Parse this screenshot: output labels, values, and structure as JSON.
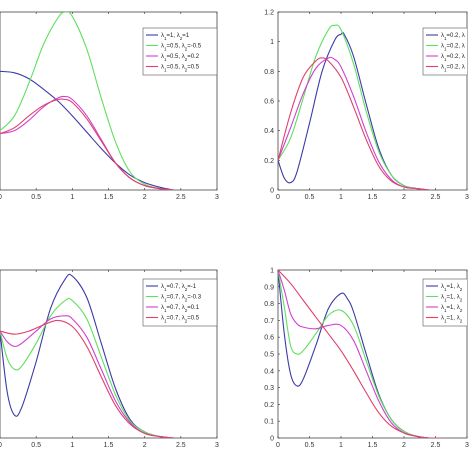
{
  "chart_data": [
    {
      "type": "line",
      "title": "",
      "xlabel": "",
      "ylabel": "",
      "xlim": [
        0,
        3
      ],
      "ylim": [
        0,
        1.2
      ],
      "grid": false,
      "legend_position": "top-right",
      "x_ticks": [
        "0",
        "0.5",
        "1",
        "1.5",
        "2",
        "2.5",
        "3"
      ],
      "y_ticks": [],
      "series": [
        {
          "name": "λ1=1, λ2=1",
          "color": "#3b3ba8",
          "x": [
            0,
            0.2,
            0.4,
            0.6,
            0.8,
            1.0,
            1.2,
            1.4,
            1.6,
            1.8,
            2.0,
            2.2,
            2.4
          ],
          "y": [
            0.8,
            0.79,
            0.75,
            0.68,
            0.6,
            0.5,
            0.39,
            0.28,
            0.18,
            0.1,
            0.05,
            0.02,
            0.0
          ]
        },
        {
          "name": "λ1=0.5, λ2=-0.5",
          "color": "#5fe05f",
          "x": [
            0,
            0.2,
            0.4,
            0.6,
            0.8,
            0.9,
            1.0,
            1.2,
            1.4,
            1.6,
            1.8,
            2.0,
            2.2,
            2.4
          ],
          "y": [
            0.4,
            0.5,
            0.72,
            0.98,
            1.16,
            1.2,
            1.17,
            0.95,
            0.62,
            0.32,
            0.12,
            0.04,
            0.01,
            0.0
          ]
        },
        {
          "name": "λ1=0.5, λ2=0.2",
          "color": "#d040d0",
          "x": [
            0,
            0.2,
            0.4,
            0.6,
            0.8,
            0.9,
            1.0,
            1.2,
            1.4,
            1.6,
            1.8,
            2.0,
            2.2,
            2.4
          ],
          "y": [
            0.38,
            0.4,
            0.47,
            0.56,
            0.62,
            0.63,
            0.61,
            0.5,
            0.34,
            0.18,
            0.08,
            0.03,
            0.01,
            0.0
          ]
        },
        {
          "name": "λ1=0.5, λ2=0.5",
          "color": "#e0406a",
          "x": [
            0,
            0.2,
            0.4,
            0.6,
            0.8,
            0.9,
            1.0,
            1.2,
            1.4,
            1.6,
            1.8,
            2.0,
            2.2,
            2.4
          ],
          "y": [
            0.38,
            0.42,
            0.5,
            0.57,
            0.61,
            0.61,
            0.59,
            0.48,
            0.33,
            0.18,
            0.08,
            0.03,
            0.01,
            0.0
          ]
        }
      ]
    },
    {
      "type": "line",
      "title": "",
      "xlabel": "",
      "ylabel": "",
      "xlim": [
        0,
        3
      ],
      "ylim": [
        0,
        1.2
      ],
      "grid": false,
      "legend_position": "top-right",
      "x_ticks": [
        "0",
        "0.5",
        "1",
        "1.5",
        "2",
        "2.5",
        "3"
      ],
      "y_ticks": [
        "0",
        "0.2",
        "0.4",
        "0.6",
        "0.8",
        "1",
        "1.2"
      ],
      "series": [
        {
          "name": "λ1=0.2, λ",
          "color": "#3b3ba8",
          "x": [
            0,
            0.1,
            0.2,
            0.3,
            0.5,
            0.7,
            0.9,
            1.0,
            1.05,
            1.2,
            1.4,
            1.6,
            1.8,
            2.0,
            2.2,
            2.4
          ],
          "y": [
            0.2,
            0.08,
            0.05,
            0.12,
            0.45,
            0.8,
            1.01,
            1.05,
            1.05,
            0.9,
            0.58,
            0.28,
            0.1,
            0.03,
            0.01,
            0.0
          ]
        },
        {
          "name": "λ1=0.2, λ",
          "color": "#5fe05f",
          "x": [
            0,
            0.2,
            0.4,
            0.6,
            0.8,
            0.9,
            1.0,
            1.2,
            1.4,
            1.6,
            1.8,
            2.0,
            2.2,
            2.4
          ],
          "y": [
            0.2,
            0.35,
            0.62,
            0.9,
            1.08,
            1.11,
            1.08,
            0.85,
            0.53,
            0.26,
            0.1,
            0.03,
            0.01,
            0.0
          ]
        },
        {
          "name": "λ1=0.2, λ",
          "color": "#d040d0",
          "x": [
            0,
            0.2,
            0.4,
            0.6,
            0.8,
            0.9,
            1.0,
            1.2,
            1.4,
            1.6,
            1.8,
            2.0,
            2.2,
            2.4
          ],
          "y": [
            0.2,
            0.42,
            0.65,
            0.82,
            0.89,
            0.88,
            0.83,
            0.63,
            0.39,
            0.19,
            0.07,
            0.02,
            0.01,
            0.0
          ]
        },
        {
          "name": "λ1=0.2, λ",
          "color": "#e0406a",
          "x": [
            0,
            0.2,
            0.4,
            0.6,
            0.7,
            0.8,
            1.0,
            1.2,
            1.4,
            1.6,
            1.8,
            2.0,
            2.2,
            2.4
          ],
          "y": [
            0.2,
            0.52,
            0.76,
            0.87,
            0.89,
            0.87,
            0.76,
            0.56,
            0.34,
            0.16,
            0.06,
            0.02,
            0.01,
            0.0
          ]
        }
      ]
    },
    {
      "type": "line",
      "title": "",
      "xlabel": "",
      "ylabel": "",
      "xlim": [
        0,
        3
      ],
      "ylim": [
        0,
        1.1
      ],
      "grid": false,
      "legend_position": "top-right",
      "x_ticks": [
        "0",
        "0.5",
        "1",
        "1.5",
        "2",
        "2.5",
        "3"
      ],
      "y_ticks": [],
      "series": [
        {
          "name": "λ1=0.7, λ2=-1",
          "color": "#3b3ba8",
          "x": [
            0,
            0.1,
            0.2,
            0.3,
            0.5,
            0.7,
            0.9,
            1.0,
            1.2,
            1.4,
            1.6,
            1.8,
            2.0,
            2.2,
            2.4
          ],
          "y": [
            0.7,
            0.3,
            0.15,
            0.2,
            0.5,
            0.85,
            1.04,
            1.06,
            0.92,
            0.62,
            0.32,
            0.12,
            0.04,
            0.01,
            0.0
          ]
        },
        {
          "name": "λ1=0.7, λ2=-0.3",
          "color": "#5fe05f",
          "x": [
            0,
            0.1,
            0.2,
            0.3,
            0.5,
            0.7,
            0.9,
            1.0,
            1.2,
            1.4,
            1.6,
            1.8,
            2.0,
            2.2,
            2.4
          ],
          "y": [
            0.7,
            0.52,
            0.45,
            0.47,
            0.62,
            0.8,
            0.9,
            0.9,
            0.78,
            0.53,
            0.28,
            0.11,
            0.04,
            0.01,
            0.0
          ]
        },
        {
          "name": "λ1=0.7, λ2=0.1",
          "color": "#d040d0",
          "x": [
            0,
            0.1,
            0.2,
            0.3,
            0.5,
            0.7,
            0.9,
            1.0,
            1.2,
            1.4,
            1.6,
            1.8,
            2.0,
            2.2,
            2.4
          ],
          "y": [
            0.7,
            0.63,
            0.6,
            0.62,
            0.7,
            0.78,
            0.8,
            0.78,
            0.66,
            0.45,
            0.24,
            0.1,
            0.03,
            0.01,
            0.0
          ]
        },
        {
          "name": "λ1=0.7, λ2=0.5",
          "color": "#e0406a",
          "x": [
            0,
            0.2,
            0.4,
            0.6,
            0.8,
            1.0,
            1.2,
            1.4,
            1.6,
            1.8,
            2.0,
            2.2,
            2.4
          ],
          "y": [
            0.7,
            0.68,
            0.7,
            0.74,
            0.77,
            0.73,
            0.6,
            0.4,
            0.21,
            0.09,
            0.03,
            0.01,
            0.0
          ]
        }
      ]
    },
    {
      "type": "line",
      "title": "",
      "xlabel": "",
      "ylabel": "",
      "xlim": [
        0,
        3
      ],
      "ylim": [
        0,
        1
      ],
      "grid": false,
      "legend_position": "top-right",
      "x_ticks": [
        "0",
        "0.5",
        "1",
        "1.5",
        "2",
        "2.5",
        "3"
      ],
      "y_ticks": [
        "0",
        "0.1",
        "0.2",
        "0.3",
        "0.4",
        "0.5",
        "0.6",
        "0.7",
        "0.8",
        "0.9",
        "1"
      ],
      "series": [
        {
          "name": "λ1=1, λ2",
          "color": "#3b3ba8",
          "x": [
            0,
            0.1,
            0.2,
            0.3,
            0.4,
            0.6,
            0.8,
            1.0,
            1.1,
            1.2,
            1.4,
            1.6,
            1.8,
            2.0,
            2.2,
            2.4,
            2.6
          ],
          "y": [
            1.0,
            0.62,
            0.38,
            0.31,
            0.35,
            0.55,
            0.77,
            0.86,
            0.83,
            0.75,
            0.5,
            0.26,
            0.11,
            0.04,
            0.01,
            0.0,
            0.0
          ]
        },
        {
          "name": "λ1=1, λ2",
          "color": "#5fe05f",
          "x": [
            0,
            0.1,
            0.2,
            0.3,
            0.4,
            0.6,
            0.8,
            1.0,
            1.2,
            1.4,
            1.6,
            1.8,
            2.0,
            2.2,
            2.4,
            2.6
          ],
          "y": [
            1.0,
            0.78,
            0.55,
            0.5,
            0.52,
            0.62,
            0.73,
            0.76,
            0.67,
            0.46,
            0.25,
            0.11,
            0.04,
            0.01,
            0.0,
            0.0
          ]
        },
        {
          "name": "λ1=1, λ2",
          "color": "#d040d0",
          "x": [
            0,
            0.1,
            0.2,
            0.3,
            0.4,
            0.6,
            0.8,
            1.0,
            1.2,
            1.4,
            1.6,
            1.8,
            2.0,
            2.2,
            2.4,
            2.6
          ],
          "y": [
            1.0,
            0.88,
            0.74,
            0.68,
            0.66,
            0.65,
            0.67,
            0.67,
            0.58,
            0.4,
            0.22,
            0.09,
            0.03,
            0.01,
            0.0,
            0.0
          ]
        },
        {
          "name": "λ1=1, λ2",
          "color": "#e0406a",
          "x": [
            0,
            0.2,
            0.4,
            0.6,
            0.8,
            1.0,
            1.2,
            1.4,
            1.6,
            1.8,
            2.0,
            2.2,
            2.4,
            2.6
          ],
          "y": [
            1.0,
            0.92,
            0.82,
            0.72,
            0.62,
            0.52,
            0.4,
            0.27,
            0.15,
            0.07,
            0.03,
            0.01,
            0.0,
            0.0
          ]
        }
      ]
    }
  ]
}
